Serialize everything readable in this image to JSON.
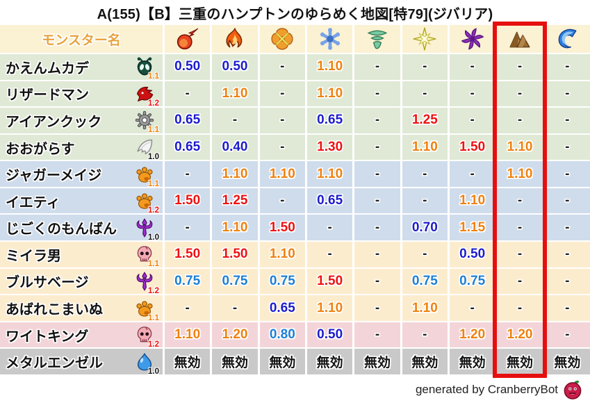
{
  "title": "A(155)【B】三重のハンプトンのゆらめく地図[特79](ジバリア)",
  "footer": {
    "credit": "generated by CranberryBot",
    "icon": "cranberrybot-icon"
  },
  "colors": {
    "highlight_box": "#e60f0f",
    "header_bg": "#fbf1d3",
    "name_header_text": "#e8a23c",
    "value_resist_strong": "#1c1ccd",
    "value_resist_mild": "#1d7fd6",
    "value_weak_mild": "#f0810f",
    "value_weak_strong": "#ee1111",
    "group_green_bg": "#dfe9d5",
    "group_blue_bg": "#cfdcec",
    "group_cream_bg": "#fcecce",
    "group_pink_bg": "#f3d5d9",
    "group_gray_bg": "#c9c9c9"
  },
  "chart_data": {
    "type": "table",
    "title": "A(155)【B】三重のハンプトンのゆらめく地図[特79](ジバリア)",
    "row_header": "モンスター名",
    "column_icons": [
      "fire-icon",
      "flame-icon",
      "explosion-icon",
      "ice-icon",
      "wind-icon",
      "lightning-icon",
      "dark-icon",
      "earth-icon",
      "water-icon"
    ],
    "highlighted_column_index": 7,
    "rows": [
      {
        "name": "かえんムカデ",
        "family_icon": "bug-family-icon",
        "rate": "1.1",
        "group": "green",
        "values": [
          "0.50",
          "0.50",
          "-",
          "1.10",
          "-",
          "-",
          "-",
          "-",
          "-"
        ]
      },
      {
        "name": "リザードマン",
        "family_icon": "dragon-family-icon",
        "rate": "1.2",
        "group": "green",
        "values": [
          "-",
          "1.10",
          "-",
          "1.10",
          "-",
          "-",
          "-",
          "-",
          "-"
        ]
      },
      {
        "name": "アイアンクック",
        "family_icon": "machine-family-icon",
        "rate": "1.1",
        "group": "green",
        "values": [
          "0.65",
          "-",
          "-",
          "0.65",
          "-",
          "1.25",
          "-",
          "-",
          "-"
        ]
      },
      {
        "name": "おおがらす",
        "family_icon": "bird-family-icon",
        "rate": "1.0",
        "group": "green",
        "values": [
          "0.65",
          "0.40",
          "-",
          "1.30",
          "-",
          "1.10",
          "1.50",
          "1.10",
          "-"
        ]
      },
      {
        "name": "ジャガーメイジ",
        "family_icon": "beast-family-icon",
        "rate": "1.1",
        "group": "blue",
        "values": [
          "-",
          "1.10",
          "1.10",
          "1.10",
          "-",
          "-",
          "-",
          "1.10",
          "-"
        ]
      },
      {
        "name": "イエティ",
        "family_icon": "beast-family-icon",
        "rate": "1.2",
        "group": "blue",
        "values": [
          "1.50",
          "1.25",
          "-",
          "0.65",
          "-",
          "-",
          "1.10",
          "-",
          "-"
        ]
      },
      {
        "name": "じごくのもんばん",
        "family_icon": "demon-family-icon",
        "rate": "1.0",
        "group": "blue",
        "values": [
          "-",
          "1.10",
          "1.50",
          "-",
          "-",
          "0.70",
          "1.15",
          "-",
          "-"
        ]
      },
      {
        "name": "ミイラ男",
        "family_icon": "zombie-family-icon",
        "rate": "1.1",
        "group": "cream",
        "values": [
          "1.50",
          "1.50",
          "1.10",
          "-",
          "-",
          "-",
          "0.50",
          "-",
          "-"
        ]
      },
      {
        "name": "ブルサベージ",
        "family_icon": "demon-family-icon",
        "rate": "1.2",
        "group": "cream",
        "values": [
          "0.75",
          "0.75",
          "0.75",
          "1.50",
          "-",
          "0.75",
          "0.75",
          "-",
          "-"
        ]
      },
      {
        "name": "あばれこまいぬ",
        "family_icon": "beast-family-icon",
        "rate": "1.1",
        "group": "cream",
        "values": [
          "-",
          "-",
          "0.65",
          "1.10",
          "-",
          "1.10",
          "-",
          "-",
          "-"
        ]
      },
      {
        "name": "ワイトキング",
        "family_icon": "zombie-family-icon",
        "rate": "1.2",
        "group": "pink",
        "values": [
          "1.10",
          "1.20",
          "0.80",
          "0.50",
          "-",
          "-",
          "1.20",
          "1.20",
          "-"
        ]
      },
      {
        "name": "メタルエンゼル",
        "family_icon": "slime-family-icon",
        "rate": "1.0",
        "group": "gray",
        "values": [
          "無効",
          "無効",
          "無効",
          "無効",
          "無効",
          "無効",
          "無効",
          "無効",
          "無効"
        ]
      }
    ]
  }
}
